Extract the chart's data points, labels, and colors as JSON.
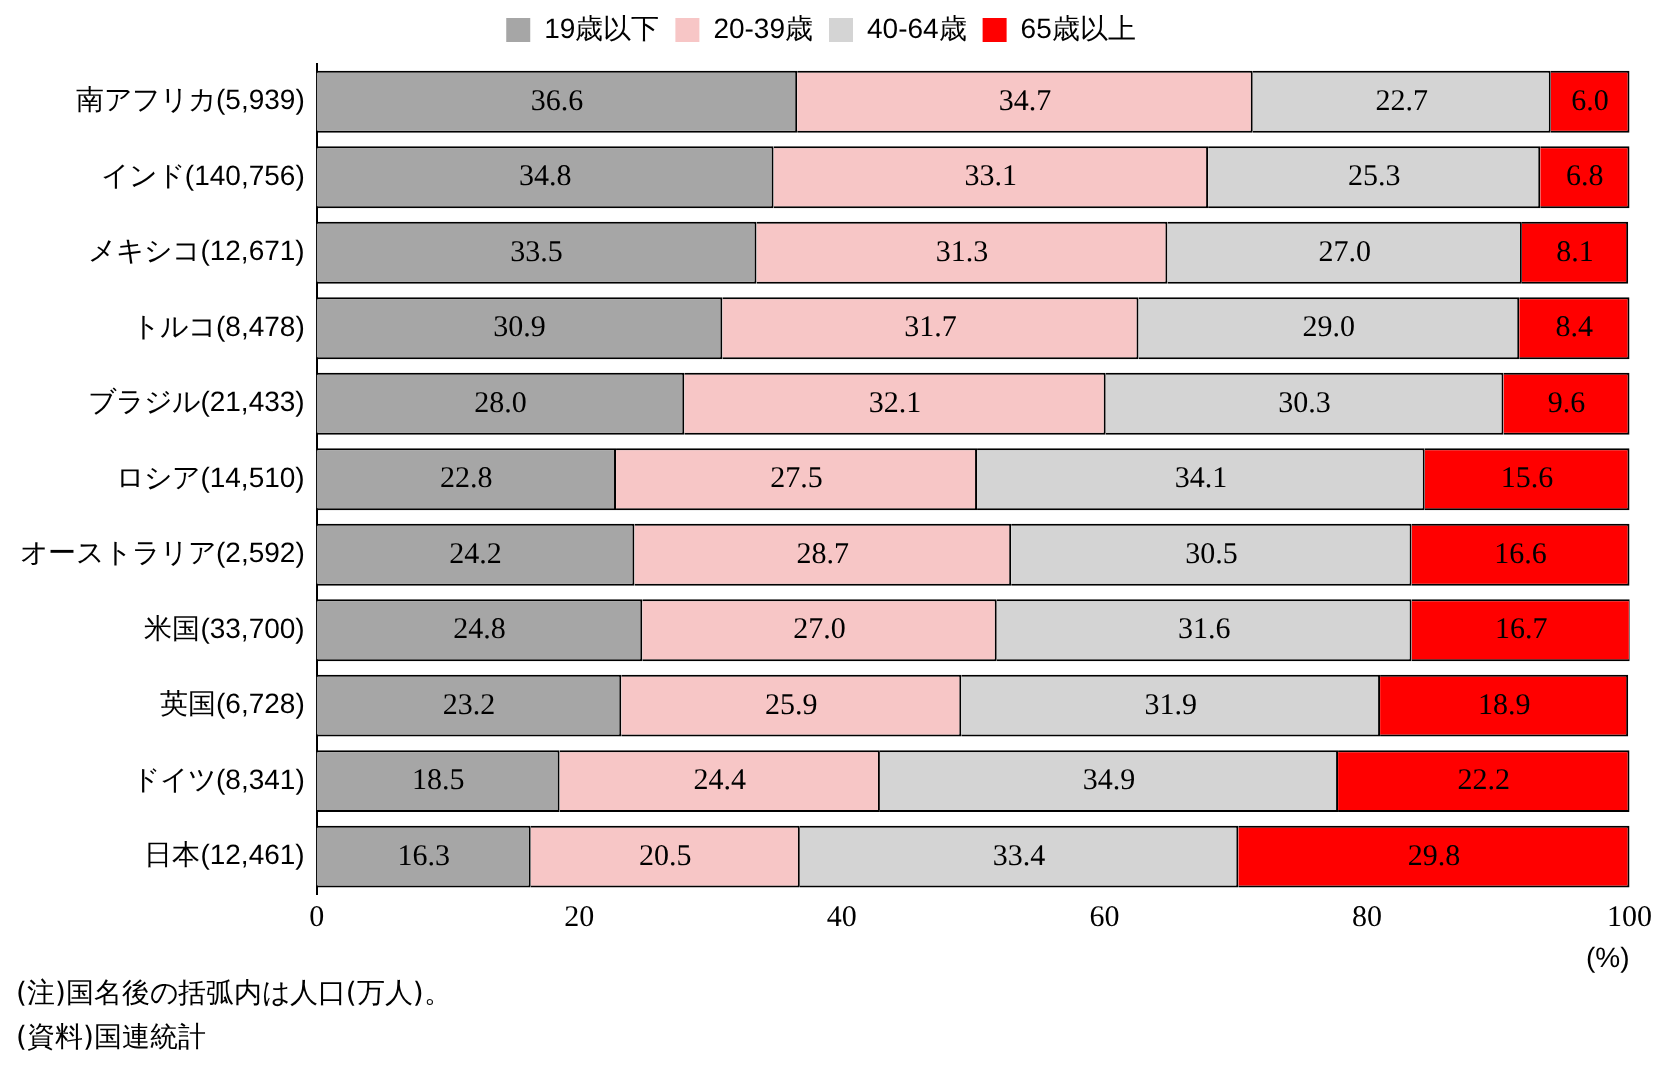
{
  "chart_data": {
    "type": "bar",
    "orientation": "horizontal",
    "stacked": true,
    "legend": "top",
    "grid": false,
    "categories": [
      "南アフリカ(5,939)",
      "インド(140,756)",
      "メキシコ(12,671)",
      "トルコ(8,478)",
      "ブラジル(21,433)",
      "ロシア(14,510)",
      "オーストラリア(2,592)",
      "米国(33,700)",
      "英国(6,728)",
      "ドイツ(8,341)",
      "日本(12,461)"
    ],
    "series": [
      {
        "name": "19歳以下",
        "color": "#a6a6a6",
        "values": [
          36.6,
          34.8,
          33.5,
          30.9,
          28.0,
          22.8,
          24.2,
          24.8,
          23.2,
          18.5,
          16.3
        ],
        "value_labels": [
          "36.6",
          "34.8",
          "33.5",
          "30.9",
          "28.0",
          "22.8",
          "24.2",
          "24.8",
          "23.2",
          "18.5",
          "16.3"
        ]
      },
      {
        "name": "20-39歳",
        "color": "#f7c6c6",
        "values": [
          34.7,
          33.1,
          31.3,
          31.7,
          32.1,
          27.5,
          28.7,
          27.0,
          25.9,
          24.4,
          20.5
        ],
        "value_labels": [
          "34.7",
          "33.1",
          "31.3",
          "31.7",
          "32.1",
          "27.5",
          "28.7",
          "27.0",
          "25.9",
          "24.4",
          "20.5"
        ]
      },
      {
        "name": "40-64歳",
        "color": "#d4d4d4",
        "values": [
          22.7,
          25.3,
          27.0,
          29.0,
          30.3,
          34.1,
          30.5,
          31.6,
          31.9,
          34.9,
          33.4
        ],
        "value_labels": [
          "22.7",
          "25.3",
          "27.0",
          "29.0",
          "30.3",
          "34.1",
          "30.5",
          "31.6",
          "31.9",
          "34.9",
          "33.4"
        ]
      },
      {
        "name": "65歳以上",
        "color": "#ff0000",
        "values": [
          6.0,
          6.8,
          8.1,
          8.4,
          9.6,
          15.6,
          16.6,
          16.7,
          18.9,
          22.2,
          29.8
        ],
        "value_labels": [
          "6.0",
          "6.8",
          "8.1",
          "8.4",
          "9.6",
          "15.6",
          "16.6",
          "16.7",
          "18.9",
          "22.2",
          "29.8"
        ]
      }
    ],
    "xlim": [
      0,
      100
    ],
    "xticks": [
      0,
      20,
      40,
      60,
      80,
      100
    ],
    "xlabel": "(%)",
    "annotations": [
      "(注)国名後の括弧内は人口(万人)。",
      "(資料)国連統計"
    ]
  }
}
